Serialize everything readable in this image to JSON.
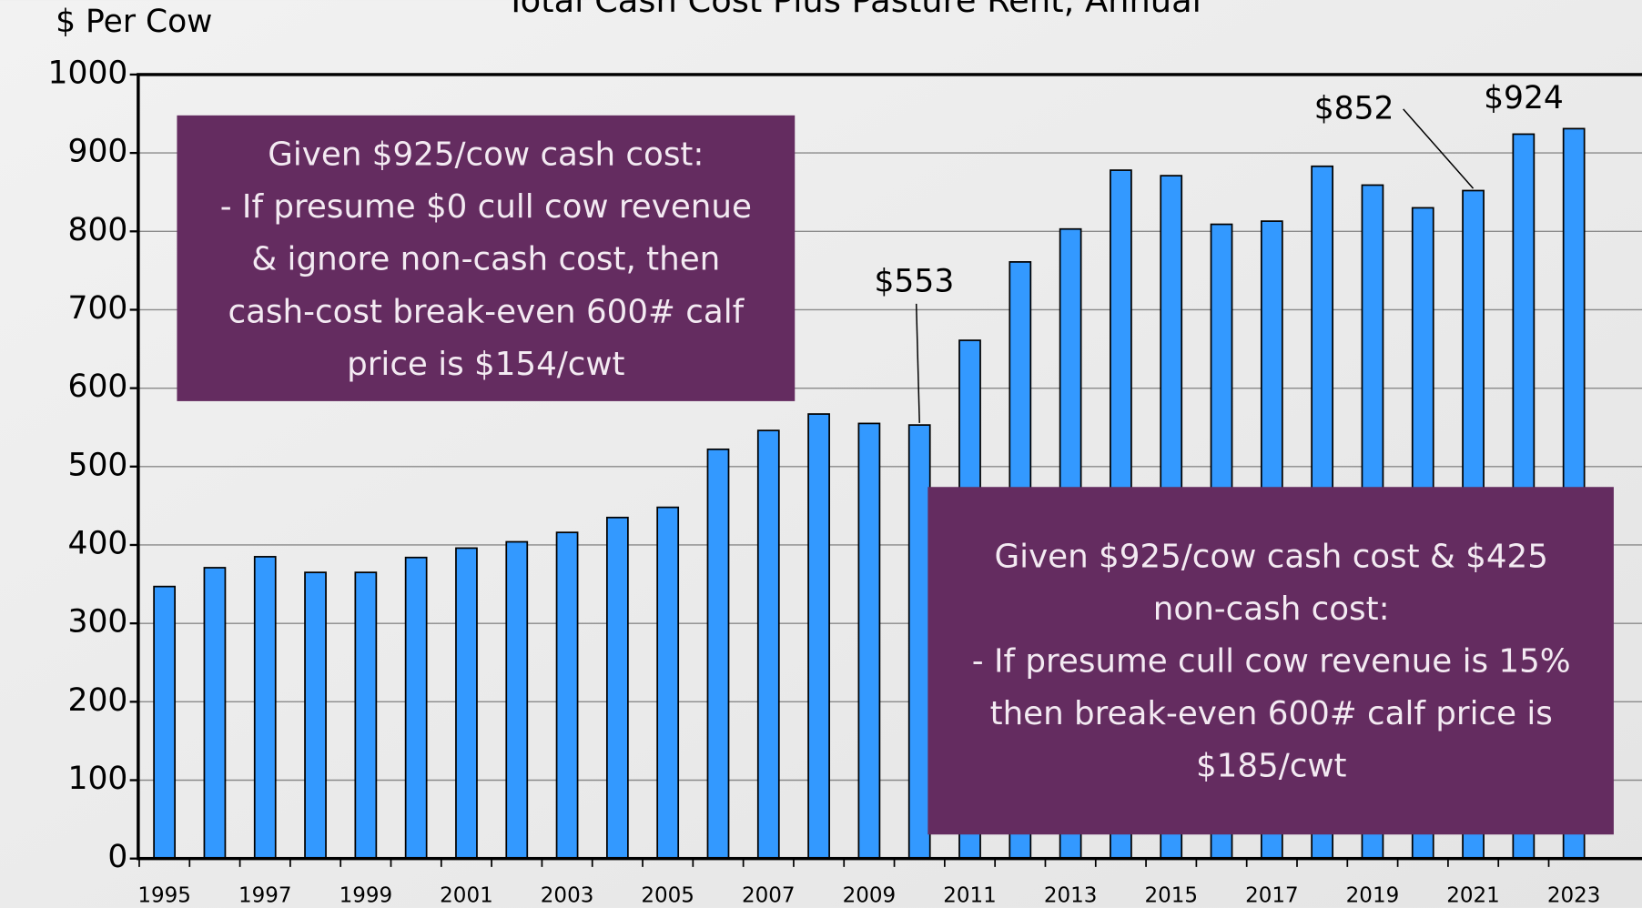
{
  "chart_data": {
    "type": "bar",
    "title": "Total Cash Cost Plus Pasture Rent, Annual",
    "y_axis_label": "$ Per Cow",
    "categories": [
      "1995",
      null,
      "1997",
      null,
      "1999",
      null,
      "2001",
      null,
      "2003",
      null,
      "2005",
      null,
      "2007",
      null,
      "2009",
      null,
      "2011",
      null,
      "2013",
      null,
      "2015",
      null,
      "2017",
      null,
      "2019",
      null,
      "2021",
      null,
      "2023"
    ],
    "values": [
      347,
      371,
      385,
      365,
      365,
      384,
      396,
      404,
      416,
      435,
      448,
      522,
      546,
      567,
      555,
      553,
      661,
      761,
      803,
      878,
      871,
      809,
      813,
      883,
      859,
      830,
      852,
      924,
      931
    ],
    "value_labels": [
      null,
      null,
      null,
      null,
      null,
      null,
      null,
      null,
      null,
      null,
      null,
      null,
      null,
      null,
      null,
      "$553",
      null,
      null,
      null,
      null,
      null,
      null,
      null,
      null,
      null,
      null,
      "$852",
      "$924",
      null
    ],
    "color": "#3399ff",
    "ylim": [
      0,
      1000
    ],
    "yticks": [
      0,
      100,
      200,
      300,
      400,
      500,
      600,
      700,
      800,
      900,
      1000
    ],
    "grid": true,
    "annotations": [
      {
        "lines": [
          "Given $925/cow cash cost:",
          "- If presume $0 cull cow revenue",
          "& ignore non-cash cost, then",
          "cash-cost break-even 600# calf",
          "price is $154/cwt"
        ]
      },
      {
        "lines": [
          "Given $925/cow cash cost & $425",
          "non-cash cost:",
          "- If presume cull cow revenue is 15%",
          "then break-even 600# calf price is",
          "$185/cwt"
        ]
      }
    ]
  }
}
